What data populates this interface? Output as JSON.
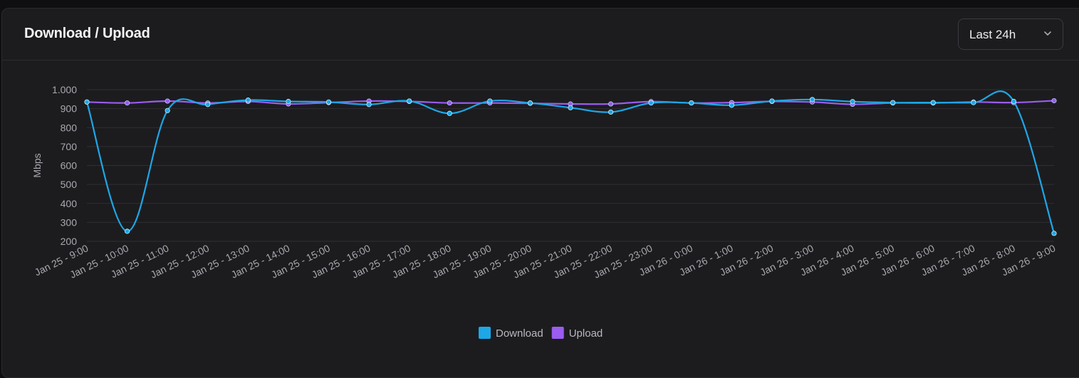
{
  "card": {
    "title": "Download / Upload",
    "range_selector": {
      "selected": "Last 24h",
      "icon": "chevron-down-icon"
    }
  },
  "colors": {
    "download": "#1ea7e6",
    "upload": "#9b5cf0",
    "grid": "#2f2f34"
  },
  "chart_data": {
    "type": "line",
    "title": "",
    "xlabel": "",
    "ylabel": "Mbps",
    "ylim": [
      200,
      1000
    ],
    "yticks": [
      "200",
      "300",
      "400",
      "500",
      "600",
      "700",
      "800",
      "900",
      "1.000"
    ],
    "ytick_values": [
      200,
      300,
      400,
      500,
      600,
      700,
      800,
      900,
      1000
    ],
    "grid": true,
    "legend_position": "bottom",
    "categories": [
      "Jan 25 - 9:00",
      "Jan 25 - 10:00",
      "Jan 25 - 11:00",
      "Jan 25 - 12:00",
      "Jan 25 - 13:00",
      "Jan 25 - 14:00",
      "Jan 25 - 15:00",
      "Jan 25 - 16:00",
      "Jan 25 - 17:00",
      "Jan 25 - 18:00",
      "Jan 25 - 19:00",
      "Jan 25 - 20:00",
      "Jan 25 - 21:00",
      "Jan 25 - 22:00",
      "Jan 25 - 23:00",
      "Jan 26 - 0:00",
      "Jan 26 - 1:00",
      "Jan 26 - 2:00",
      "Jan 26 - 3:00",
      "Jan 26 - 4:00",
      "Jan 26 - 5:00",
      "Jan 26 - 6:00",
      "Jan 26 - 7:00",
      "Jan 26 - 8:00",
      "Jan 26 - 9:00"
    ],
    "series": [
      {
        "name": "Download",
        "color": "#1ea7e6",
        "values": [
          935,
          253,
          890,
          922,
          945,
          938,
          935,
          922,
          940,
          875,
          940,
          930,
          905,
          882,
          930,
          930,
          918,
          940,
          948,
          937,
          932,
          932,
          932,
          938,
          242
        ]
      },
      {
        "name": "Upload",
        "color": "#9b5cf0",
        "values": [
          935,
          930,
          940,
          930,
          938,
          925,
          932,
          940,
          938,
          930,
          930,
          928,
          925,
          925,
          937,
          930,
          932,
          938,
          935,
          923,
          930,
          930,
          935,
          932,
          942
        ]
      }
    ]
  }
}
